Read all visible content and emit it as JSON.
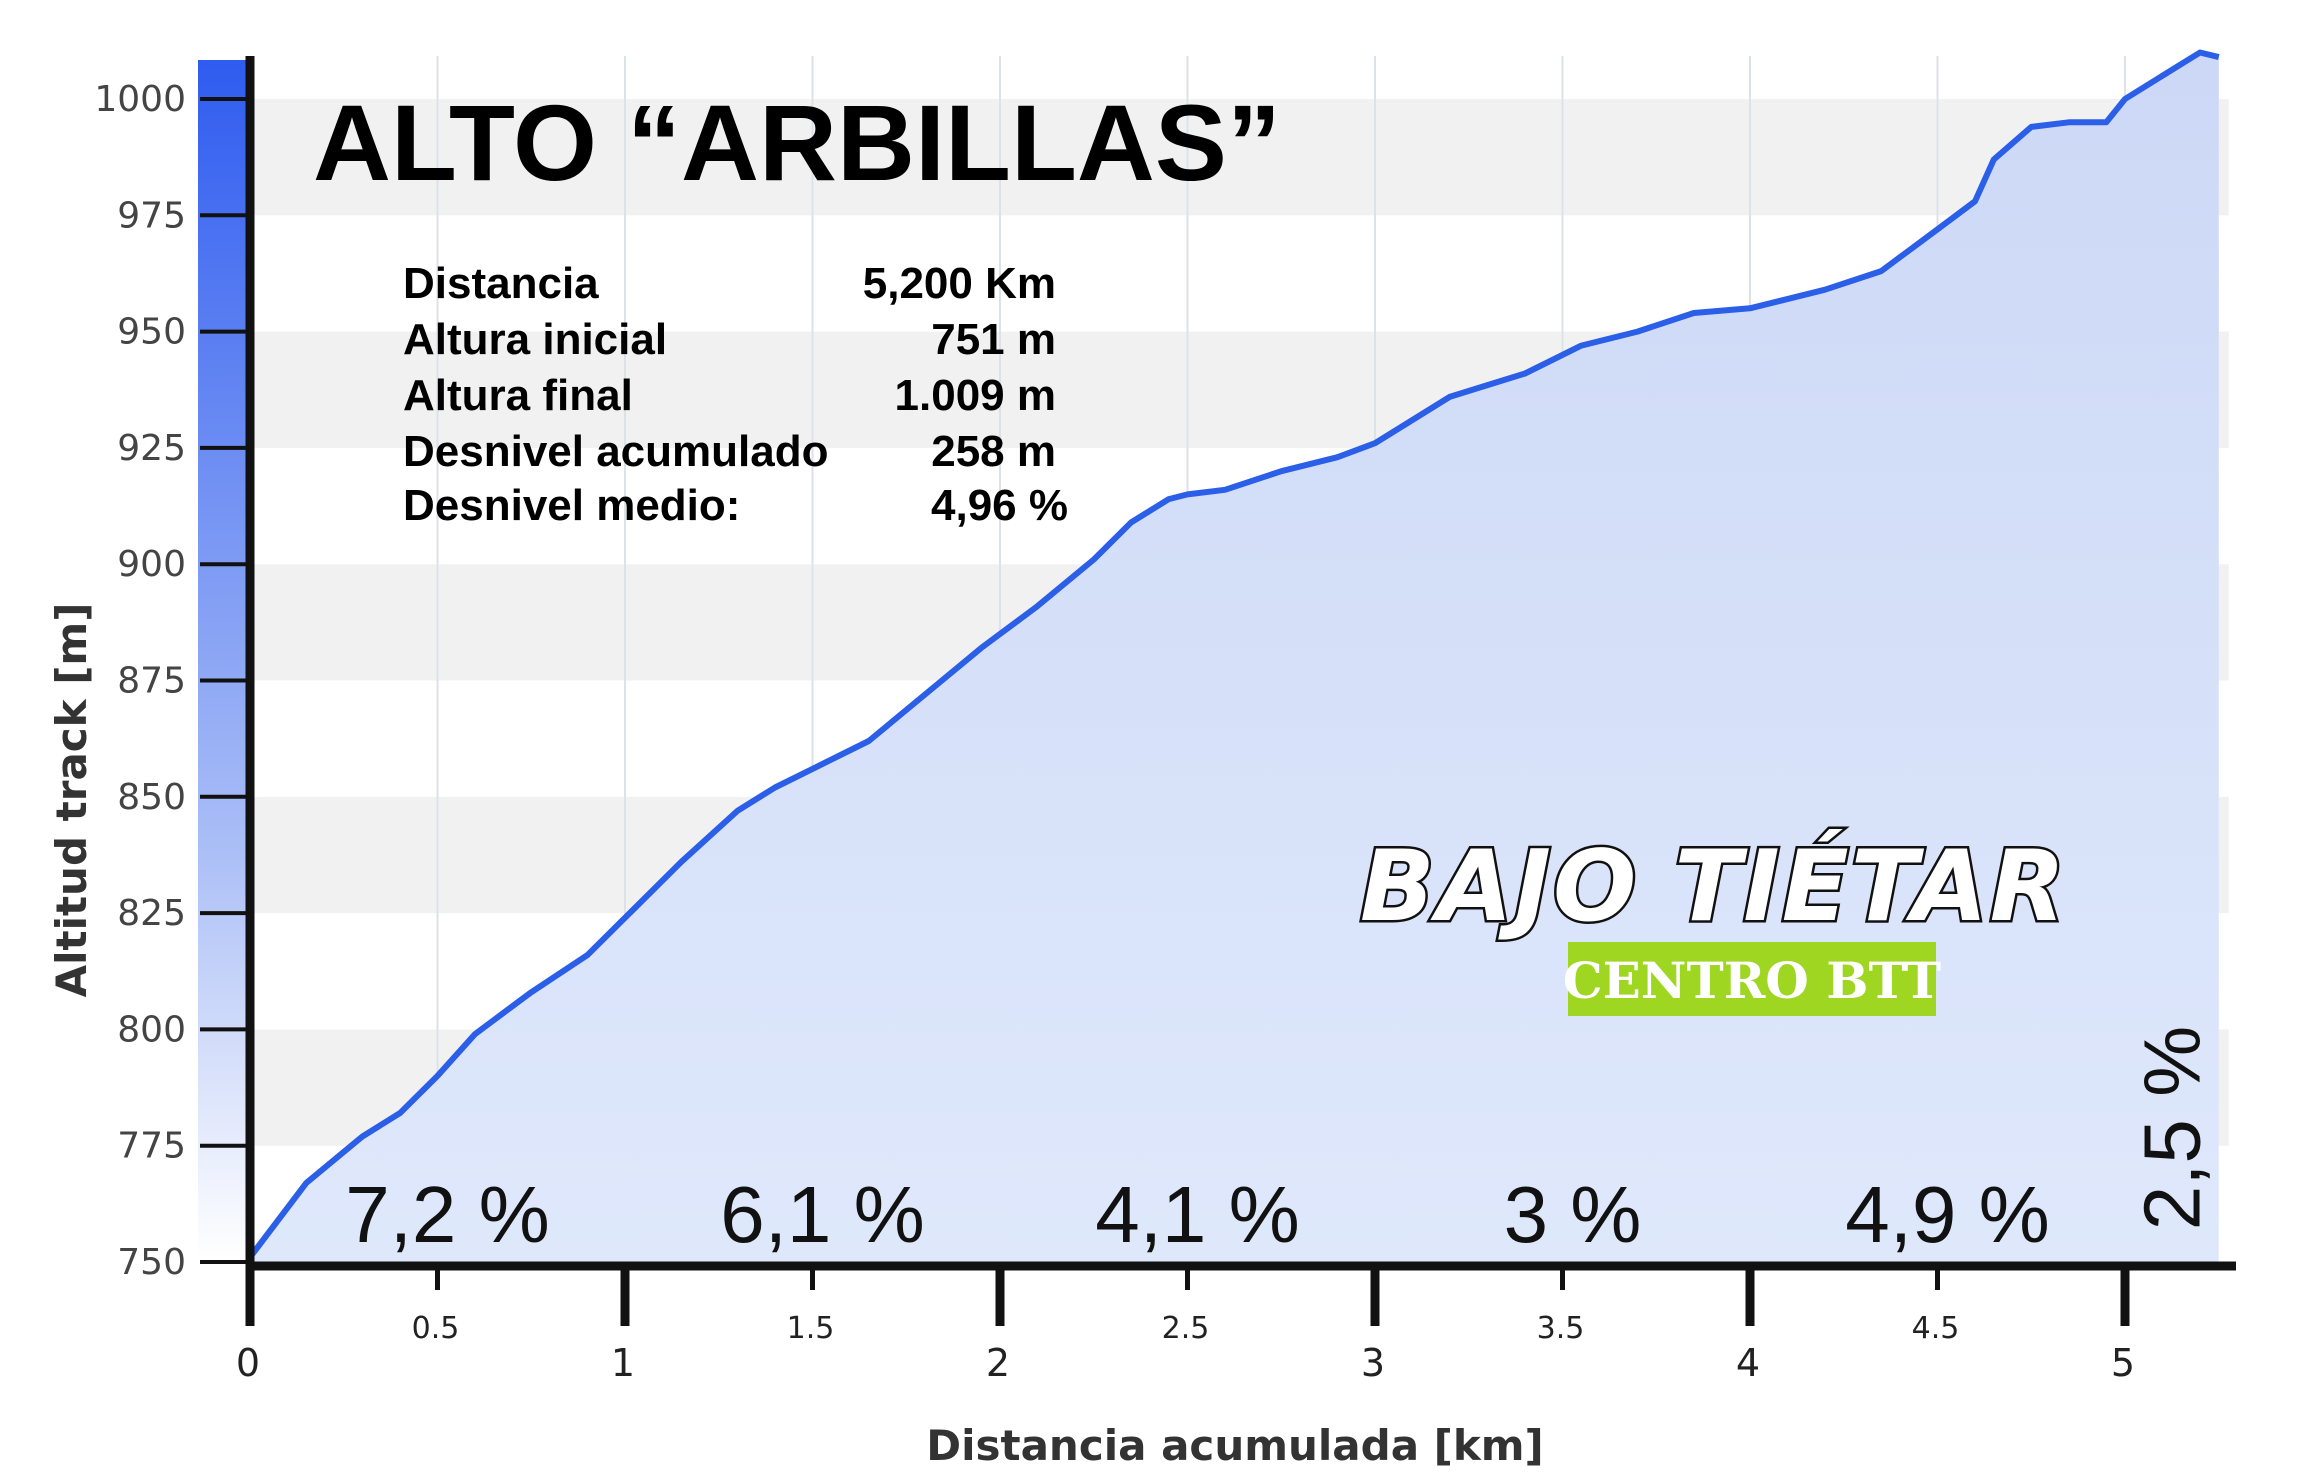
{
  "chart_data": {
    "type": "area",
    "title": "ALTO “ARBILLAS”",
    "xlabel": "Distancia acumulada [km]",
    "ylabel": "Altitud track [m]",
    "xlim": [
      0,
      5.25
    ],
    "ylim": [
      750,
      1010
    ],
    "x_ticks_major": [
      "0",
      "1",
      "2",
      "3",
      "4",
      "5"
    ],
    "x_ticks_minor": [
      "0.5",
      "1.5",
      "2.5",
      "3.5",
      "4.5"
    ],
    "y_ticks": [
      "750",
      "775",
      "800",
      "825",
      "850",
      "875",
      "900",
      "925",
      "950",
      "975",
      "1000"
    ],
    "grid": "horizontal bands and vertical lines",
    "colors": {
      "line": "#2b5fe8",
      "fill": "#dbe5fa",
      "axis": "#111111",
      "brand_box": "#9ed622"
    },
    "series": [
      {
        "x": [
          0,
          0.15,
          0.3,
          0.4,
          0.5,
          0.6,
          0.75,
          0.9,
          1.0,
          1.15,
          1.3,
          1.4,
          1.5,
          1.65,
          1.8,
          1.95,
          2.1,
          2.25,
          2.35,
          2.45,
          2.5,
          2.6,
          2.75,
          2.9,
          3.0,
          3.2,
          3.4,
          3.55,
          3.7,
          3.85,
          4.0,
          4.2,
          4.35,
          4.5,
          4.6,
          4.65,
          4.75,
          4.85,
          4.95,
          5.0,
          5.1,
          5.2,
          5.25
        ],
        "y": [
          751,
          767,
          777,
          782,
          790,
          799,
          808,
          816,
          824,
          836,
          847,
          852,
          856,
          862,
          872,
          882,
          891,
          901,
          909,
          914,
          915,
          916,
          920,
          923,
          926,
          936,
          941,
          947,
          950,
          954,
          955,
          959,
          963,
          972,
          978,
          987,
          994,
          995,
          995,
          1000,
          1005,
          1010,
          1009
        ]
      }
    ],
    "stats": [
      {
        "label": "Distancia",
        "value": "5,200 Km"
      },
      {
        "label": "Altura inicial",
        "value": "751 m"
      },
      {
        "label": "Altura final",
        "value": "1.009 m"
      },
      {
        "label": "Desnivel acumulado",
        "value": "258 m"
      },
      {
        "label": "Desnivel medio:",
        "value": "4,96 %"
      }
    ],
    "segment_gradients": [
      {
        "text": "7,2 %",
        "x": 0.5
      },
      {
        "text": "6,1 %",
        "x": 1.5
      },
      {
        "text": "4,1 %",
        "x": 2.5
      },
      {
        "text": "3 %",
        "x": 3.5
      },
      {
        "text": "4,9 %",
        "x": 4.5
      },
      {
        "text": "2,5 %",
        "x": 5.15
      }
    ]
  },
  "brand": {
    "name": "BAJO TIÉTAR",
    "subtitle": "CENTRO BTT"
  }
}
